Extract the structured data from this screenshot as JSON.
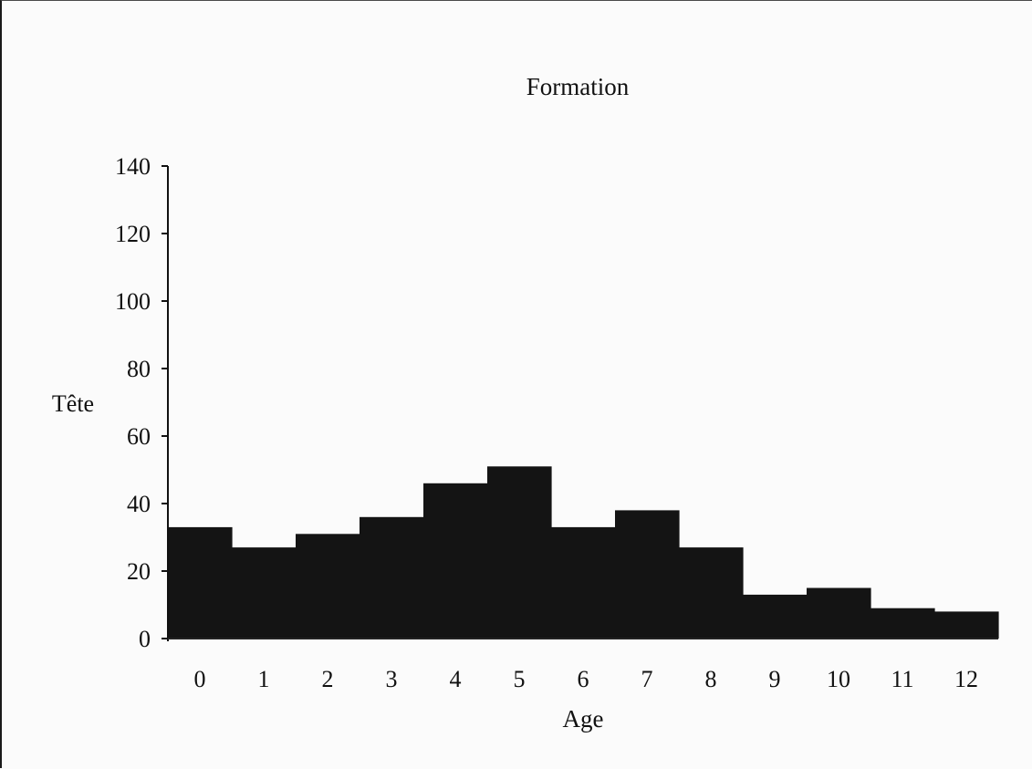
{
  "chart_data": {
    "type": "bar",
    "title": "Formation",
    "xlabel": "Age",
    "ylabel": "Tête",
    "categories": [
      "0",
      "1",
      "2",
      "3",
      "4",
      "5",
      "6",
      "7",
      "8",
      "9",
      "10",
      "11",
      "12"
    ],
    "values": [
      33,
      27,
      31,
      36,
      46,
      51,
      33,
      38,
      27,
      13,
      15,
      9,
      8
    ],
    "ylim": [
      0,
      140
    ],
    "yticks": [
      0,
      20,
      40,
      60,
      80,
      100,
      120,
      140
    ],
    "grid": false,
    "legend": "none",
    "bar_color": "#141414"
  }
}
